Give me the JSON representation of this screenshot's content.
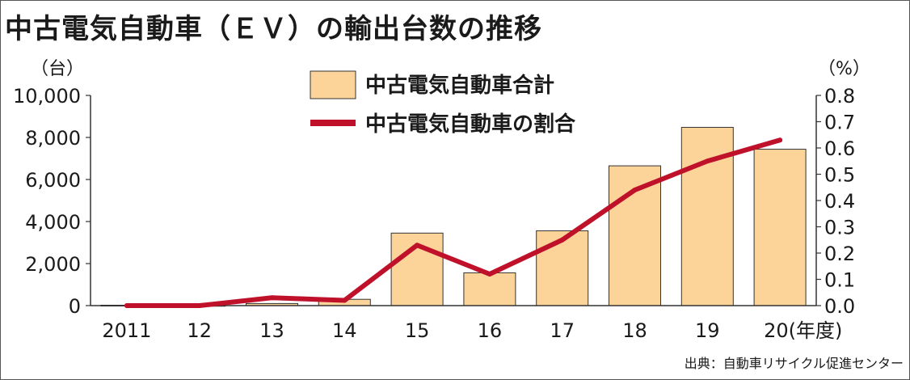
{
  "title": "中古電気自動車（ＥＶ）の輸出台数の推移",
  "source": "出典：自動車リサイクル促進センター",
  "chart_data": {
    "type": "bar",
    "categories": [
      "2011",
      "12",
      "13",
      "14",
      "15",
      "16",
      "17",
      "18",
      "19",
      "20(年度)"
    ],
    "series": [
      {
        "name": "中古電気自動車合計",
        "type": "bar",
        "axis": "left",
        "color": "#fcd49a",
        "values": [
          20,
          10,
          100,
          300,
          3450,
          1560,
          3560,
          6650,
          8480,
          7440
        ]
      },
      {
        "name": "中古電気自動車の割合",
        "type": "line",
        "axis": "right",
        "color": "#c0112b",
        "values": [
          0.0,
          0.0,
          0.03,
          0.02,
          0.23,
          0.12,
          0.25,
          0.44,
          0.55,
          0.63
        ]
      }
    ],
    "y_left": {
      "unit_label": "（台）",
      "range": [
        0,
        10000
      ],
      "ticks": [
        0,
        2000,
        4000,
        6000,
        8000,
        10000
      ],
      "tick_labels": [
        "0",
        "2,000",
        "4,000",
        "6,000",
        "8,000",
        "10,000"
      ]
    },
    "y_right": {
      "unit_label": "（%）",
      "range": [
        0,
        0.8
      ],
      "ticks": [
        0,
        0.1,
        0.2,
        0.3,
        0.4,
        0.5,
        0.6,
        0.7,
        0.8
      ],
      "tick_labels": [
        "0.0",
        "0.1",
        "0.2",
        "0.3",
        "0.4",
        "0.5",
        "0.6",
        "0.7",
        "0.8"
      ]
    },
    "legend_position": "top-center",
    "grid": false
  }
}
